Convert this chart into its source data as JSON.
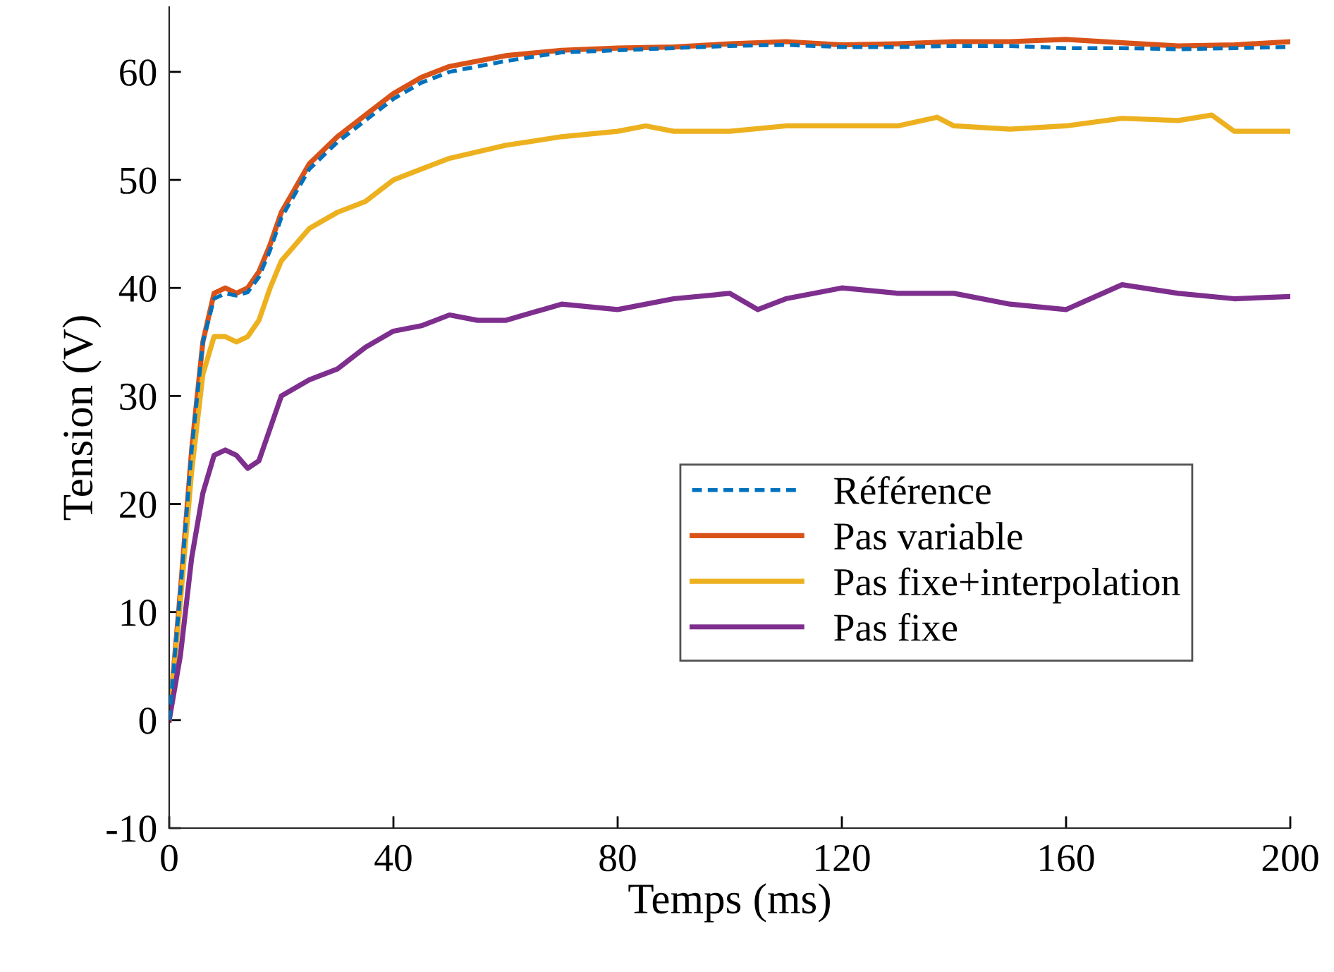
{
  "chart_data": {
    "type": "line",
    "xlabel": "Temps (ms)",
    "ylabel": "Tension (V)",
    "xlim": [
      0,
      200
    ],
    "xticks": [
      0,
      40,
      80,
      120,
      160,
      200
    ],
    "ylim": [
      -10,
      66
    ],
    "yticks": [
      -10,
      0,
      10,
      20,
      30,
      40,
      50,
      60
    ],
    "grid": false,
    "legend": "right",
    "marker": "none",
    "series": [
      {
        "name": "Référence",
        "color": "#0072bd",
        "line_style": "dashed",
        "x": [
          0,
          2,
          4,
          6,
          8,
          10,
          12,
          14,
          16,
          18,
          20,
          25,
          30,
          35,
          40,
          45,
          50,
          60,
          70,
          80,
          90,
          100,
          110,
          120,
          130,
          140,
          150,
          160,
          170,
          180,
          190,
          200
        ],
        "values": [
          0,
          12,
          25,
          35,
          39,
          39.5,
          39.3,
          39.6,
          41,
          43.5,
          46.5,
          51,
          53.5,
          55.5,
          57.5,
          59,
          60,
          61,
          61.8,
          62,
          62.2,
          62.4,
          62.5,
          62.3,
          62.3,
          62.4,
          62.4,
          62.2,
          62.2,
          62.1,
          62.2,
          62.3
        ]
      },
      {
        "name": "Pas variable",
        "color": "#d95319",
        "line_style": "solid",
        "x": [
          0,
          2,
          4,
          6,
          8,
          10,
          12,
          14,
          16,
          18,
          20,
          25,
          30,
          35,
          40,
          45,
          50,
          60,
          70,
          80,
          90,
          100,
          110,
          120,
          130,
          140,
          150,
          160,
          170,
          180,
          190,
          200
        ],
        "values": [
          0,
          12,
          25,
          35,
          39.5,
          40,
          39.5,
          40,
          41.5,
          44,
          47,
          51.5,
          54,
          56,
          58,
          59.5,
          60.5,
          61.5,
          62,
          62.2,
          62.3,
          62.6,
          62.8,
          62.5,
          62.6,
          62.8,
          62.8,
          63,
          62.7,
          62.4,
          62.5,
          62.8
        ]
      },
      {
        "name": "Pas fixe+interpolation",
        "color": "#edb120",
        "line_style": "solid",
        "x": [
          0,
          2,
          4,
          6,
          8,
          10,
          12,
          14,
          16,
          18,
          20,
          25,
          30,
          35,
          40,
          45,
          50,
          60,
          70,
          80,
          85,
          90,
          100,
          110,
          120,
          130,
          137,
          140,
          150,
          160,
          170,
          180,
          186,
          190,
          200
        ],
        "values": [
          0,
          11,
          23,
          32,
          35.5,
          35.5,
          35,
          35.5,
          37,
          40,
          42.5,
          45.5,
          47,
          48,
          50,
          51,
          52,
          53.2,
          54,
          54.5,
          55,
          54.5,
          54.5,
          55,
          55,
          55,
          55.8,
          55,
          54.7,
          55,
          55.7,
          55.5,
          56,
          54.5,
          54.5
        ]
      },
      {
        "name": "Pas fixe",
        "color": "#7e2f8e",
        "line_style": "solid",
        "x": [
          0,
          2,
          4,
          6,
          8,
          10,
          12,
          14,
          16,
          18,
          20,
          25,
          30,
          35,
          40,
          45,
          50,
          55,
          60,
          70,
          80,
          90,
          100,
          105,
          110,
          120,
          130,
          140,
          150,
          160,
          170,
          180,
          190,
          200
        ],
        "values": [
          0,
          6,
          15,
          21,
          24.5,
          25,
          24.5,
          23.3,
          24,
          27,
          30,
          31.5,
          32.5,
          34.5,
          36,
          36.5,
          37.5,
          37,
          37,
          38.5,
          38,
          39,
          39.5,
          38,
          39,
          40,
          39.5,
          39.5,
          38.5,
          38,
          40.3,
          39.5,
          39,
          39.2
        ]
      }
    ]
  }
}
